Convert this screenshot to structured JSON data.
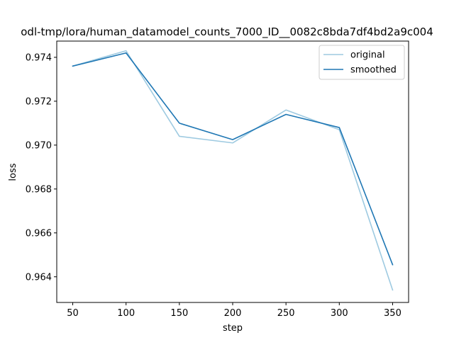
{
  "chart_data": {
    "type": "line",
    "title": "odl-tmp/lora/human_datamodel_counts_7000_ID__0082c8bda7df4bd2a9c004",
    "xlabel": "step",
    "ylabel": "loss",
    "x": [
      50,
      100,
      150,
      200,
      250,
      300,
      350
    ],
    "xlim": [
      35,
      365
    ],
    "ylim": [
      0.96283,
      0.97474
    ],
    "xticks": [
      50,
      100,
      150,
      200,
      250,
      300,
      350
    ],
    "yticks": [
      0.964,
      0.966,
      0.968,
      0.97,
      0.972,
      0.974
    ],
    "ytick_labels": [
      "0.964",
      "0.966",
      "0.968",
      "0.970",
      "0.972",
      "0.974"
    ],
    "series": [
      {
        "name": "original",
        "color": "#9ecae1",
        "values": [
          0.9736,
          0.9743,
          0.9704,
          0.9701,
          0.9716,
          0.9707,
          0.9634
        ]
      },
      {
        "name": "smoothed",
        "color": "#1f77b4",
        "values": [
          0.9736,
          0.9742,
          0.971,
          0.97025,
          0.9714,
          0.9708,
          0.96455
        ]
      }
    ],
    "legend": {
      "position": "top-right"
    },
    "grid": false
  }
}
